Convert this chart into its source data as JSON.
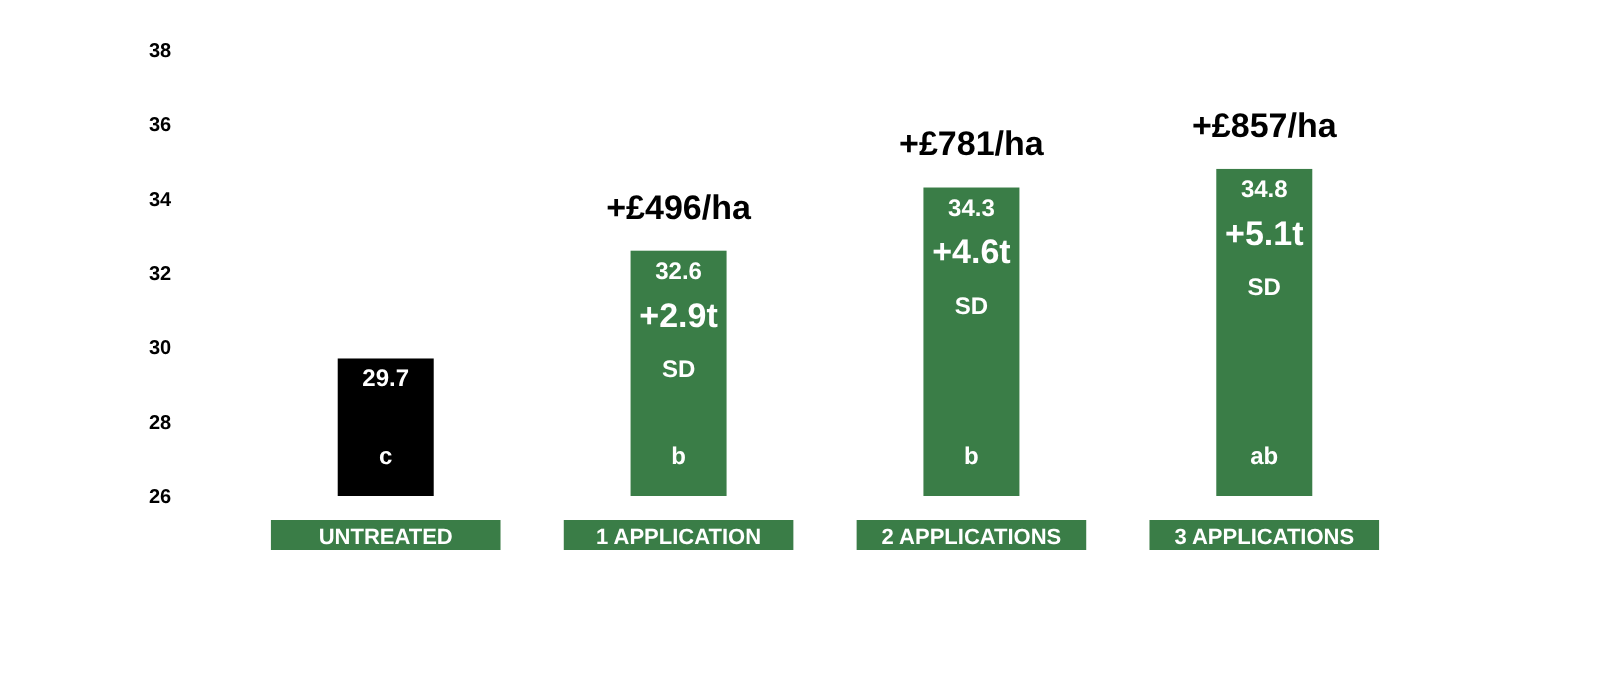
{
  "chart_data": {
    "type": "bar",
    "categories": [
      "UNTREATED",
      "1 APPLICATION",
      "2 APPLICATIONS",
      "3 APPLICATIONS"
    ],
    "values": [
      29.7,
      32.6,
      34.3,
      34.8
    ],
    "colors": [
      "#000000",
      "#3a7d47",
      "#3a7d47",
      "#3a7d47"
    ],
    "ylim": [
      26,
      38
    ],
    "yticks": [
      26,
      28,
      30,
      32,
      34,
      36,
      38
    ],
    "grid": false,
    "data_labels": true,
    "annotations": [
      "c",
      "+£496/ha",
      "+2.9t",
      "SD",
      "b",
      "+£781/ha",
      "+4.6t",
      "SD",
      "b",
      "+£857/ha",
      "+5.1t",
      "SD",
      "ab"
    ]
  }
}
